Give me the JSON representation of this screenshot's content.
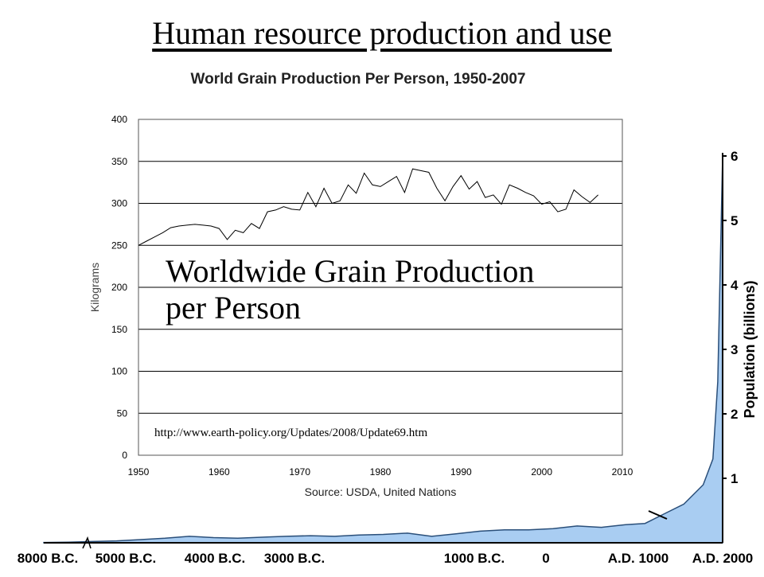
{
  "slide": {
    "title": "Human resource production and use",
    "overlay_lines": [
      "Worldwide Grain Production",
      "per Person"
    ],
    "url": "http://www.earth-policy.org/Updates/2008/Update69.htm"
  },
  "colors": {
    "population_fill": "#a9cdf2",
    "population_stroke": "#2a4f7a",
    "grain_line": "#000000",
    "grid": "#000000"
  },
  "chart_data": [
    {
      "type": "line",
      "title": "World Grain Production Per Person, 1950-2007",
      "xlabel": "Source: USDA, United Nations",
      "ylabel": "Kilograms",
      "xlim": [
        1950,
        2010
      ],
      "ylim": [
        0,
        400
      ],
      "xticks": [
        1950,
        1960,
        1970,
        1980,
        1990,
        2000,
        2010
      ],
      "yticks": [
        0,
        50,
        100,
        150,
        200,
        250,
        300,
        350,
        400
      ],
      "grid": "horizontal",
      "series": [
        {
          "name": "",
          "x": [
            1950,
            1951,
            1952,
            1953,
            1954,
            1955,
            1956,
            1957,
            1958,
            1959,
            1960,
            1961,
            1962,
            1963,
            1964,
            1965,
            1966,
            1967,
            1968,
            1969,
            1970,
            1971,
            1972,
            1973,
            1974,
            1975,
            1976,
            1977,
            1978,
            1979,
            1980,
            1981,
            1982,
            1983,
            1984,
            1985,
            1986,
            1987,
            1988,
            1989,
            1990,
            1991,
            1992,
            1993,
            1994,
            1995,
            1996,
            1997,
            1998,
            1999,
            2000,
            2001,
            2002,
            2003,
            2004,
            2005,
            2006,
            2007
          ],
          "y": [
            250,
            255,
            260,
            265,
            271,
            273,
            274,
            275,
            274,
            273,
            270,
            257,
            268,
            265,
            276,
            270,
            290,
            292,
            296,
            293,
            292,
            313,
            296,
            318,
            300,
            303,
            322,
            312,
            336,
            322,
            320,
            326,
            332,
            313,
            341,
            339,
            337,
            318,
            303,
            320,
            333,
            317,
            326,
            307,
            310,
            299,
            322,
            318,
            313,
            309,
            299,
            302,
            290,
            293,
            316,
            308,
            301,
            310
          ]
        }
      ]
    },
    {
      "type": "area",
      "title": "",
      "xlabel": "",
      "ylabel": "Population (billions)",
      "categories_note": "non-linear time axis",
      "x_tick_labels": [
        "8000 B.C.",
        "5000 B.C.",
        "4000 B.C.",
        "3000 B.C.",
        "1000 B.C.",
        "0",
        "A.D. 1000",
        "A.D. 2000"
      ],
      "ylim": [
        0,
        6
      ],
      "yticks": [
        1,
        2,
        3,
        4,
        5,
        6
      ],
      "series": [
        {
          "name": "",
          "x_index": [
            0,
            0.25,
            0.5,
            0.75,
            1,
            1.25,
            1.5,
            1.75,
            2,
            2.3,
            2.5,
            2.75,
            3,
            3.25,
            3.5,
            3.75,
            4,
            4.25,
            4.5,
            4.75,
            5,
            5.25,
            5.5,
            5.75,
            6,
            6.2,
            6.4,
            6.6,
            6.8,
            6.9,
            6.95,
            7
          ],
          "values": [
            0.005,
            0.01,
            0.02,
            0.03,
            0.05,
            0.07,
            0.1,
            0.08,
            0.07,
            0.09,
            0.1,
            0.11,
            0.1,
            0.12,
            0.13,
            0.15,
            0.1,
            0.14,
            0.18,
            0.2,
            0.2,
            0.22,
            0.26,
            0.24,
            0.28,
            0.3,
            0.45,
            0.6,
            0.9,
            1.3,
            2.5,
            6.0
          ]
        }
      ]
    }
  ]
}
